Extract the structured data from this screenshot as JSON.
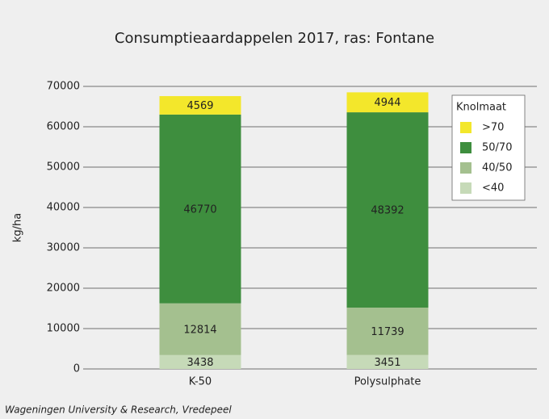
{
  "chart_data": {
    "type": "stacked_bar",
    "title": "Consumptieaardappelen 2017, ras: Fontane",
    "ylabel": "kg/ha",
    "source": "Wageningen University & Research, Vredepeel",
    "categories": [
      "K-50",
      "Polysulphate"
    ],
    "series": [
      {
        "name": "<40",
        "color": "#c6dab8",
        "values": [
          3438,
          3451
        ]
      },
      {
        "name": "40/50",
        "color": "#a4c08f",
        "values": [
          12814,
          11739
        ]
      },
      {
        "name": "50/70",
        "color": "#3e8e3e",
        "values": [
          46770,
          48392
        ]
      },
      {
        "name": ">70",
        "color": "#f3e72b",
        "values": [
          4569,
          4944
        ]
      }
    ],
    "legend_title": "Knolmaat",
    "legend": "upper right",
    "ylim": [
      0,
      70000
    ],
    "yticks": [
      0,
      10000,
      20000,
      30000,
      40000,
      50000,
      60000,
      70000
    ],
    "grid": true
  }
}
